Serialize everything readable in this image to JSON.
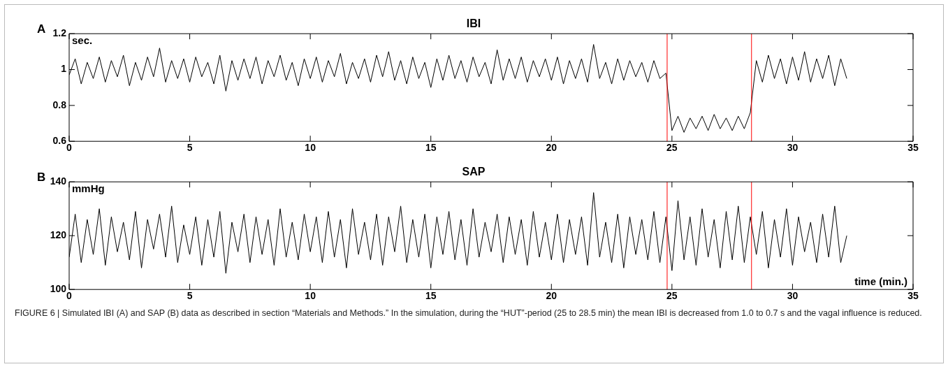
{
  "chart_data": [
    {
      "type": "line",
      "title": "IBI",
      "ylabel": "sec.",
      "annotations": [
        "A"
      ],
      "x": [
        0,
        0.25,
        0.5,
        0.75,
        1,
        1.25,
        1.5,
        1.75,
        2,
        2.25,
        2.5,
        2.75,
        3,
        3.25,
        3.5,
        3.75,
        4,
        4.25,
        4.5,
        4.75,
        5,
        5.25,
        5.5,
        5.75,
        6,
        6.25,
        6.5,
        6.75,
        7,
        7.25,
        7.5,
        7.75,
        8,
        8.25,
        8.5,
        8.75,
        9,
        9.25,
        9.5,
        9.75,
        10,
        10.25,
        10.5,
        10.75,
        11,
        11.25,
        11.5,
        11.75,
        12,
        12.25,
        12.5,
        12.75,
        13,
        13.25,
        13.5,
        13.75,
        14,
        14.25,
        14.5,
        14.75,
        15,
        15.25,
        15.5,
        15.75,
        16,
        16.25,
        16.5,
        16.75,
        17,
        17.25,
        17.5,
        17.75,
        18,
        18.25,
        18.5,
        18.75,
        19,
        19.25,
        19.5,
        19.75,
        20,
        20.25,
        20.5,
        20.75,
        21,
        21.25,
        21.5,
        21.75,
        22,
        22.25,
        22.5,
        22.75,
        23,
        23.25,
        23.5,
        23.75,
        24,
        24.25,
        24.5,
        24.75,
        25,
        25.25,
        25.5,
        25.75,
        26,
        26.25,
        26.5,
        26.75,
        27,
        27.25,
        27.5,
        27.75,
        28,
        28.25,
        28.5,
        28.75,
        29,
        29.25,
        29.5,
        29.75,
        30,
        30.25,
        30.5,
        30.75,
        31,
        31.25,
        31.5,
        31.75,
        32,
        32.25
      ],
      "series": [
        {
          "color": "#000000",
          "values": [
            0.97,
            1.06,
            0.92,
            1.04,
            0.95,
            1.07,
            0.93,
            1.05,
            0.96,
            1.08,
            0.91,
            1.04,
            0.94,
            1.07,
            0.96,
            1.12,
            0.93,
            1.05,
            0.95,
            1.06,
            0.93,
            1.07,
            0.96,
            1.04,
            0.92,
            1.08,
            0.88,
            1.05,
            0.94,
            1.06,
            0.95,
            1.07,
            0.92,
            1.05,
            0.96,
            1.08,
            0.94,
            1.04,
            0.91,
            1.06,
            0.95,
            1.07,
            0.93,
            1.05,
            0.96,
            1.09,
            0.92,
            1.04,
            0.95,
            1.06,
            0.93,
            1.08,
            0.96,
            1.1,
            0.94,
            1.05,
            0.92,
            1.07,
            0.95,
            1.04,
            0.9,
            1.06,
            0.94,
            1.08,
            0.95,
            1.05,
            0.93,
            1.07,
            0.96,
            1.04,
            0.92,
            1.11,
            0.94,
            1.06,
            0.95,
            1.07,
            0.93,
            1.05,
            0.96,
            1.06,
            0.94,
            1.07,
            0.92,
            1.05,
            0.95,
            1.06,
            0.93,
            1.14,
            0.95,
            1.04,
            0.92,
            1.06,
            0.94,
            1.05,
            0.96,
            1.04,
            0.93,
            1.05,
            0.95,
            0.98,
            0.66,
            0.74,
            0.65,
            0.73,
            0.67,
            0.74,
            0.66,
            0.75,
            0.67,
            0.73,
            0.66,
            0.74,
            0.67,
            0.76,
            1.05,
            0.93,
            1.08,
            0.95,
            1.06,
            0.92,
            1.07,
            0.94,
            1.1,
            0.93,
            1.06,
            0.95,
            1.08,
            0.91,
            1.06,
            0.95
          ]
        }
      ],
      "xlim": [
        0,
        35
      ],
      "xticks": [
        0,
        5,
        10,
        15,
        20,
        25,
        30,
        35
      ],
      "ylim": [
        0.6,
        1.2
      ],
      "yticks": [
        0.6,
        0.8,
        1,
        1.2
      ],
      "grid": false,
      "legend": false,
      "marker": "none",
      "line_style": "solid",
      "ref_lines": [
        {
          "axis": "x",
          "value": 24.8,
          "color": "#ff0000"
        },
        {
          "axis": "x",
          "value": 28.3,
          "color": "#ff0000"
        }
      ]
    },
    {
      "type": "line",
      "title": "SAP",
      "ylabel": "mmHg",
      "xlabel": "time (min.)",
      "annotations": [
        "B",
        "FIGURE 6 | Simulated IBI (A) and SAP (B) data as described in section “Materials and Methods.” In the simulation, during the “HUT”-period (25 to 28.5 min) the mean IBI is decreased from 1.0 to 0.7 s and the vagal influence is reduced."
      ],
      "x": [
        0,
        0.25,
        0.5,
        0.75,
        1,
        1.25,
        1.5,
        1.75,
        2,
        2.25,
        2.5,
        2.75,
        3,
        3.25,
        3.5,
        3.75,
        4,
        4.25,
        4.5,
        4.75,
        5,
        5.25,
        5.5,
        5.75,
        6,
        6.25,
        6.5,
        6.75,
        7,
        7.25,
        7.5,
        7.75,
        8,
        8.25,
        8.5,
        8.75,
        9,
        9.25,
        9.5,
        9.75,
        10,
        10.25,
        10.5,
        10.75,
        11,
        11.25,
        11.5,
        11.75,
        12,
        12.25,
        12.5,
        12.75,
        13,
        13.25,
        13.5,
        13.75,
        14,
        14.25,
        14.5,
        14.75,
        15,
        15.25,
        15.5,
        15.75,
        16,
        16.25,
        16.5,
        16.75,
        17,
        17.25,
        17.5,
        17.75,
        18,
        18.25,
        18.5,
        18.75,
        19,
        19.25,
        19.5,
        19.75,
        20,
        20.25,
        20.5,
        20.75,
        21,
        21.25,
        21.5,
        21.75,
        22,
        22.25,
        22.5,
        22.75,
        23,
        23.25,
        23.5,
        23.75,
        24,
        24.25,
        24.5,
        24.75,
        25,
        25.25,
        25.5,
        25.75,
        26,
        26.25,
        26.5,
        26.75,
        27,
        27.25,
        27.5,
        27.75,
        28,
        28.25,
        28.5,
        28.75,
        29,
        29.25,
        29.5,
        29.75,
        30,
        30.25,
        30.5,
        30.75,
        31,
        31.25,
        31.5,
        31.75,
        32,
        32.25
      ],
      "series": [
        {
          "color": "#000000",
          "values": [
            112,
            128,
            110,
            126,
            113,
            130,
            109,
            127,
            114,
            125,
            111,
            129,
            108,
            126,
            115,
            128,
            112,
            131,
            110,
            124,
            113,
            127,
            109,
            126,
            112,
            129,
            106,
            125,
            114,
            128,
            110,
            127,
            113,
            126,
            109,
            130,
            112,
            125,
            111,
            128,
            114,
            127,
            110,
            129,
            112,
            126,
            108,
            130,
            113,
            125,
            111,
            128,
            109,
            127,
            114,
            131,
            110,
            126,
            112,
            128,
            108,
            127,
            113,
            129,
            111,
            126,
            109,
            130,
            112,
            125,
            114,
            128,
            110,
            127,
            113,
            126,
            109,
            129,
            112,
            125,
            111,
            128,
            110,
            126,
            113,
            127,
            109,
            136,
            112,
            125,
            110,
            128,
            108,
            127,
            113,
            126,
            111,
            129,
            110,
            127,
            107,
            133,
            111,
            127,
            109,
            130,
            112,
            126,
            108,
            129,
            111,
            131,
            110,
            127,
            113,
            129,
            108,
            126,
            112,
            130,
            109,
            127,
            114,
            125,
            110,
            128,
            112,
            131,
            110,
            120
          ]
        }
      ],
      "xlim": [
        0,
        35
      ],
      "xticks": [
        0,
        5,
        10,
        15,
        20,
        25,
        30,
        35
      ],
      "ylim": [
        100,
        140
      ],
      "yticks": [
        100,
        120,
        140
      ],
      "grid": false,
      "legend": false,
      "marker": "none",
      "line_style": "solid",
      "ref_lines": [
        {
          "axis": "x",
          "value": 24.8,
          "color": "#ff0000"
        },
        {
          "axis": "x",
          "value": 28.3,
          "color": "#ff0000"
        }
      ]
    }
  ]
}
